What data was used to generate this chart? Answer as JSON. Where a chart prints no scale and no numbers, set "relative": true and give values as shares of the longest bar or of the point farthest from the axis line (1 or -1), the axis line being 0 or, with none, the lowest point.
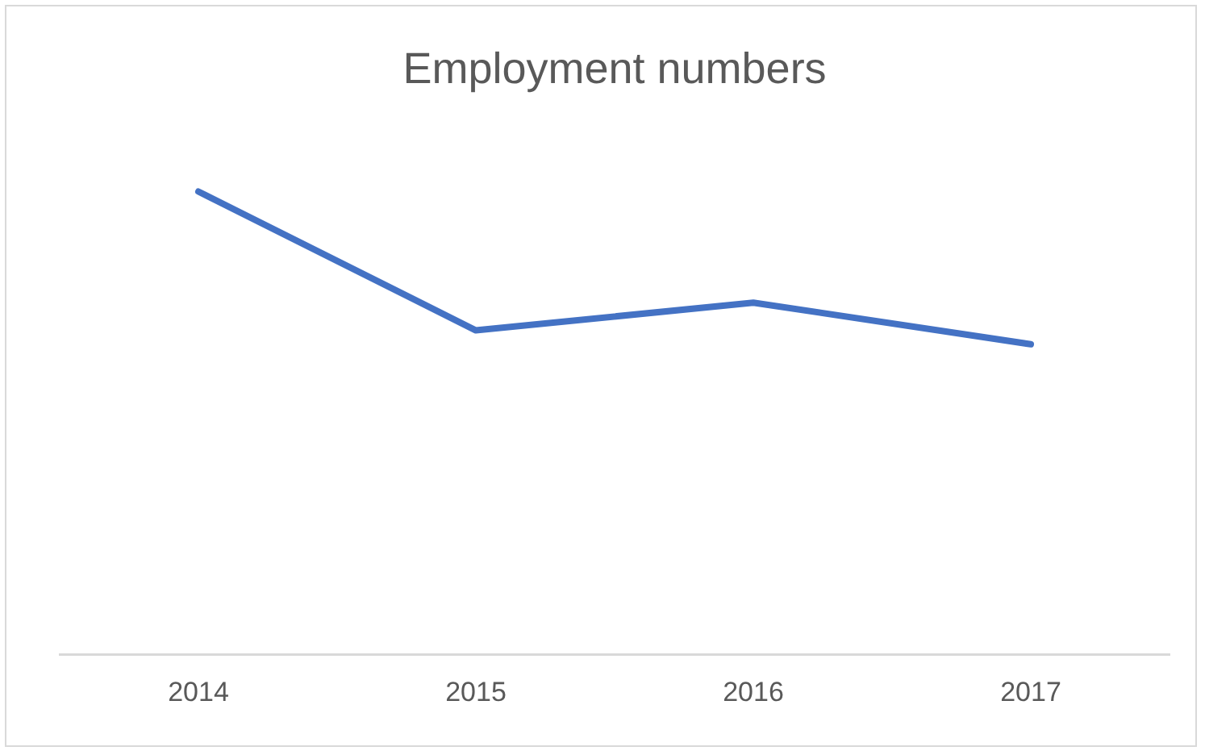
{
  "chart_data": {
    "type": "line",
    "title": "Employment numbers",
    "categories": [
      "2014",
      "2015",
      "2016",
      "2017"
    ],
    "relative": true,
    "grid": false,
    "legend": false,
    "marker": "none",
    "line_style": "solid",
    "series": [
      {
        "color": "#4472c4",
        "values": [
          1,
          0.7,
          0.76,
          0.67
        ]
      }
    ]
  }
}
